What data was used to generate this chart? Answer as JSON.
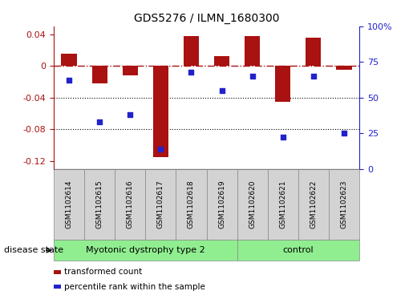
{
  "title": "GDS5276 / ILMN_1680300",
  "samples": [
    "GSM1102614",
    "GSM1102615",
    "GSM1102616",
    "GSM1102617",
    "GSM1102618",
    "GSM1102619",
    "GSM1102620",
    "GSM1102621",
    "GSM1102622",
    "GSM1102623"
  ],
  "bar_values": [
    0.015,
    -0.022,
    -0.012,
    -0.115,
    0.038,
    0.012,
    0.038,
    -0.045,
    0.035,
    -0.005
  ],
  "scatter_values": [
    62,
    33,
    38,
    14,
    68,
    55,
    65,
    22,
    65,
    25
  ],
  "bar_color": "#aa1111",
  "scatter_color": "#2222cc",
  "ylim_left": [
    -0.13,
    0.05
  ],
  "ylim_right": [
    0,
    100
  ],
  "yticks_left": [
    -0.12,
    -0.08,
    -0.04,
    0.0,
    0.04
  ],
  "yticks_right": [
    0,
    25,
    50,
    75,
    100
  ],
  "hline_y": 0.0,
  "dotted_lines": [
    -0.04,
    -0.08
  ],
  "groups": [
    {
      "label": "Myotonic dystrophy type 2",
      "start": 0,
      "end": 6,
      "color": "#90ee90"
    },
    {
      "label": "control",
      "start": 6,
      "end": 10,
      "color": "#90ee90"
    }
  ],
  "disease_state_label": "disease state",
  "legend_items": [
    {
      "label": "transformed count",
      "color": "#aa1111"
    },
    {
      "label": "percentile rank within the sample",
      "color": "#2222cc"
    }
  ],
  "fig_width": 5.15,
  "fig_height": 3.63
}
